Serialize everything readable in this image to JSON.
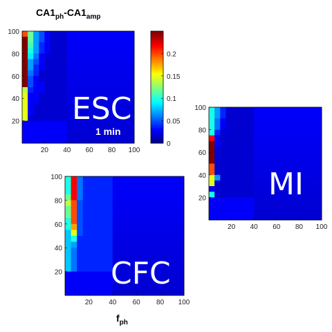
{
  "title": {
    "main": "CA1",
    "sub1": "ph",
    "dash": "-CA1",
    "sub2": "amp"
  },
  "xlabel": {
    "main": "f",
    "sub": "ph"
  },
  "colors": {
    "background": "#0a0aa0"
  },
  "chart_data": [
    {
      "type": "heatmap",
      "name": "ESC",
      "label": "ESC",
      "sublabel": "1 min",
      "xlim": [
        0,
        100
      ],
      "ylim": [
        0,
        100
      ],
      "xticks": [
        20,
        40,
        60,
        80,
        100
      ],
      "yticks": [
        20,
        40,
        60,
        80,
        100
      ],
      "colorbar": {
        "range": [
          0,
          0.25
        ],
        "ticks": [
          0,
          0.05,
          0.1,
          0.15,
          0.2
        ],
        "tick_labels": [
          "0",
          "0.05",
          "0.1",
          "0.15",
          "0.2"
        ]
      },
      "grid": [
        [
          0.2,
          0.25,
          0.25,
          0.25,
          0.25,
          0.25,
          0.25,
          0.25,
          0.25,
          0.25,
          0.14,
          0.15,
          0.15,
          0.15,
          0.15,
          0.15
        ],
        [
          0.12,
          0.12,
          0.11,
          0.1,
          0.09,
          0.07,
          0.07,
          0.06,
          0.05,
          0.05,
          0.04,
          0.03,
          0.03,
          0.03,
          0.03,
          0.02
        ],
        [
          0.07,
          0.07,
          0.07,
          0.07,
          0.06,
          0.05,
          0.04,
          0.04,
          0.03,
          0.03,
          0.03,
          0.03,
          0.03,
          0.02,
          0.02,
          0.02
        ],
        [
          0.05,
          0.05,
          0.04,
          0.04,
          0.03,
          0.03,
          0.03,
          0.02,
          0.02,
          0.03,
          0.03,
          0.02,
          0.02,
          0.02,
          0.02,
          0.02
        ],
        [
          0.03,
          0.03,
          0.03,
          0.03,
          0.02,
          0.02,
          0.02,
          0.02,
          0.02,
          0.02,
          0.02,
          0.02,
          0.02,
          0.02,
          0.02,
          0.02
        ],
        [
          0.02,
          0.02,
          0.02,
          0.02,
          0.02,
          0.02,
          0.02,
          0.02,
          0.02,
          0.02,
          0.02,
          0.02,
          0.02,
          0.02,
          0.02,
          0.02
        ],
        [
          0.02,
          0.02,
          0.02,
          0.02,
          0.02,
          0.02,
          0.02,
          0.02,
          0.02,
          0.02,
          0.02,
          0.02,
          0.02,
          0.02,
          0.02,
          0.02
        ],
        [
          0.02,
          0.02,
          0.02,
          0.02,
          0.02,
          0.02,
          0.02,
          0.02,
          0.02,
          0.02,
          0.02,
          0.02,
          0.02,
          0.02,
          0.02,
          0.02
        ]
      ]
    },
    {
      "type": "heatmap",
      "name": "MI",
      "label": "MI",
      "xlim": [
        0,
        100
      ],
      "ylim": [
        0,
        100
      ],
      "xticks": [
        20,
        40,
        60,
        80,
        100
      ],
      "yticks": [
        20,
        40,
        60,
        80,
        100
      ],
      "grid": [
        [
          0.1,
          0.1,
          0.1,
          0.1,
          0.1,
          0.22,
          0.25,
          0.25,
          0.25,
          0.25,
          0.2,
          0.2,
          0.15,
          0.15,
          0.03,
          0.1
        ],
        [
          0.07,
          0.07,
          0.06,
          0.06,
          0.04,
          0.03,
          0.03,
          0.02,
          0.02,
          0.02,
          0.02,
          0.02,
          0.07,
          0.02,
          0.02,
          0.02
        ],
        [
          0.04,
          0.04,
          0.03,
          0.03,
          0.02,
          0.02,
          0.02,
          0.02,
          0.02,
          0.02,
          0.02,
          0.02,
          0.02,
          0.02,
          0.02,
          0.02
        ],
        [
          0.02,
          0.02,
          0.02,
          0.02,
          0.02,
          0.02,
          0.02,
          0.02,
          0.02,
          0.02,
          0.02,
          0.02,
          0.02,
          0.02,
          0.02,
          0.02
        ],
        [
          0.02,
          0.02,
          0.02,
          0.02,
          0.02,
          0.02,
          0.02,
          0.02,
          0.02,
          0.02,
          0.02,
          0.02,
          0.02,
          0.02,
          0.02,
          0.02
        ],
        [
          0.02,
          0.02,
          0.02,
          0.02,
          0.02,
          0.02,
          0.02,
          0.02,
          0.02,
          0.02,
          0.02,
          0.02,
          0.02,
          0.02,
          0.02,
          0.02
        ],
        [
          0.02,
          0.02,
          0.02,
          0.02,
          0.02,
          0.02,
          0.02,
          0.02,
          0.02,
          0.02,
          0.02,
          0.02,
          0.02,
          0.02,
          0.02,
          0.02
        ],
        [
          0.02,
          0.02,
          0.02,
          0.02,
          0.02,
          0.02,
          0.02,
          0.02,
          0.02,
          0.02,
          0.02,
          0.02,
          0.02,
          0.02,
          0.02,
          0.02
        ]
      ]
    },
    {
      "type": "heatmap",
      "name": "CFC",
      "label": "CFC",
      "xlim": [
        0,
        100
      ],
      "ylim": [
        0,
        100
      ],
      "xticks": [
        20,
        40,
        60,
        80,
        100
      ],
      "yticks": [
        20,
        40,
        60,
        80,
        100
      ],
      "grid": [
        [
          0.1,
          0.1,
          0.1,
          0.12,
          0.14,
          0.12,
          0.12,
          0.1,
          0.1,
          0.08,
          0.08,
          0.08,
          0.08,
          0.08,
          0.08,
          0.08
        ],
        [
          0.22,
          0.22,
          0.22,
          0.22,
          0.2,
          0.2,
          0.2,
          0.2,
          0.18,
          0.15,
          0.1,
          0.07,
          0.06,
          0.06,
          0.06,
          0.06
        ],
        [
          0.06,
          0.06,
          0.06,
          0.06,
          0.05,
          0.05,
          0.05,
          0.05,
          0.05,
          0.05,
          0.04,
          0.04,
          0.04,
          0.04,
          0.04,
          0.04
        ],
        [
          0.04,
          0.04,
          0.04,
          0.04,
          0.04,
          0.04,
          0.04,
          0.04,
          0.04,
          0.04,
          0.04,
          0.04,
          0.04,
          0.04,
          0.04,
          0.04
        ],
        [
          0.04,
          0.04,
          0.04,
          0.04,
          0.04,
          0.04,
          0.04,
          0.04,
          0.04,
          0.04,
          0.04,
          0.04,
          0.04,
          0.04,
          0.04,
          0.04
        ],
        [
          0.04,
          0.04,
          0.04,
          0.04,
          0.04,
          0.04,
          0.04,
          0.04,
          0.04,
          0.04,
          0.04,
          0.04,
          0.04,
          0.04,
          0.04,
          0.04
        ],
        [
          0.04,
          0.04,
          0.04,
          0.04,
          0.04,
          0.04,
          0.04,
          0.04,
          0.04,
          0.04,
          0.04,
          0.04,
          0.04,
          0.04,
          0.04,
          0.04
        ],
        [
          0.04,
          0.04,
          0.04,
          0.04,
          0.04,
          0.04,
          0.04,
          0.04,
          0.04,
          0.04,
          0.04,
          0.04,
          0.04,
          0.04,
          0.04,
          0.04
        ]
      ]
    }
  ]
}
